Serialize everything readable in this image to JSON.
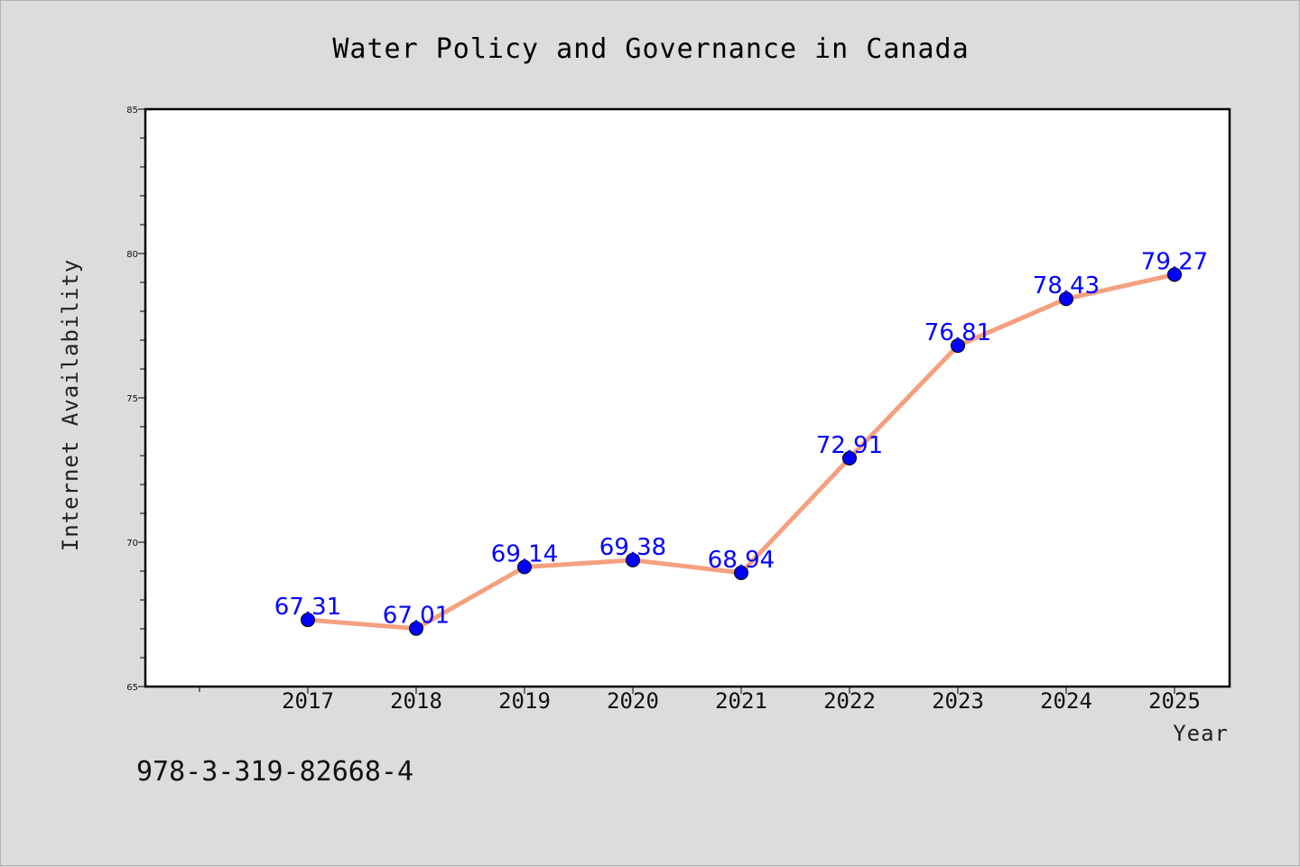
{
  "chart_data": {
    "type": "line",
    "title": "Water Policy and Governance in Canada",
    "xlabel": "Year",
    "ylabel": "Internet Availability",
    "categories": [
      "2017",
      "2018",
      "2019",
      "2020",
      "2021",
      "2022",
      "2023",
      "2024",
      "2025"
    ],
    "series": [
      {
        "values": [
          67.31,
          67.01,
          69.14,
          69.38,
          68.94,
          72.91,
          76.81,
          78.43,
          79.27
        ],
        "data_labels": [
          "67.31",
          "67.01",
          "69.14",
          "69.38",
          "68.94",
          "72.91",
          "76.81",
          "78.43",
          "79.27"
        ]
      }
    ],
    "ylim": [
      65,
      85
    ],
    "y_ticks": [
      "65",
      "70",
      "75",
      "80",
      "85"
    ],
    "grid": false,
    "legend": "none",
    "colors": {
      "line": "#f4a07f",
      "marker": "#0000ff",
      "data_label": "#0000ff",
      "plot_background": "#ffffff",
      "page_background": "#dcdcdc"
    }
  },
  "footer": {
    "code": "978-3-319-82668-4"
  }
}
